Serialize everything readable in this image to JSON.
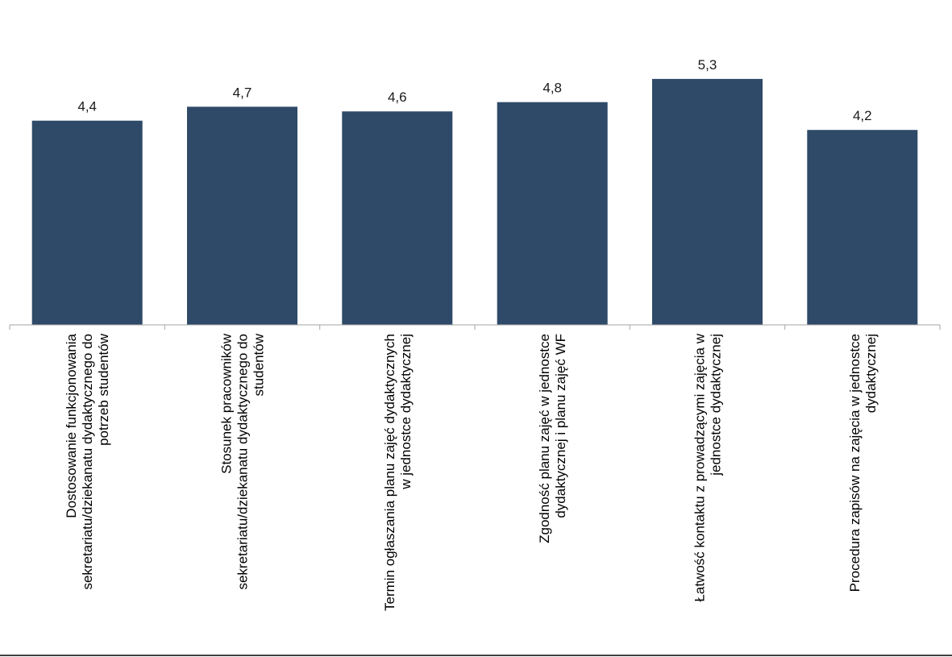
{
  "chart_data": {
    "type": "bar",
    "categories": [
      [
        "Dostosowanie funkcjonowania",
        "sekretariatu/dziekanatu dydaktycznego do",
        "potrzeb studentów"
      ],
      [
        "Stosunek pracowników",
        "sekretariatu/dziekanatu dydaktycznego do",
        "studentów"
      ],
      [
        "Termin ogłaszania planu zajęć dydaktycznych",
        "w jednostce dydaktycznej"
      ],
      [
        "Zgodność planu zajęć w jednostce",
        "dydaktycznej i planu zajęć WF"
      ],
      [
        "Łatwość kontaktu z prowadzącymi zajęcia w",
        "jednostce dydaktycznej"
      ],
      [
        "Procedura zapisów na zajęcia w jednostce",
        "dydaktycznej"
      ]
    ],
    "values": [
      4.4,
      4.7,
      4.6,
      4.8,
      5.3,
      4.2
    ],
    "value_labels": [
      "4,4",
      "4,7",
      "4,6",
      "4,8",
      "5,3",
      "4,2"
    ],
    "title": "",
    "xlabel": "",
    "ylabel": "",
    "ylim": [
      0,
      7
    ],
    "grid": false,
    "legend": "none",
    "colors": {
      "bar": "#2e4a68",
      "axis": "#a6a6a6",
      "value_label": "#1a1a1a",
      "category_label": "#000000"
    }
  }
}
